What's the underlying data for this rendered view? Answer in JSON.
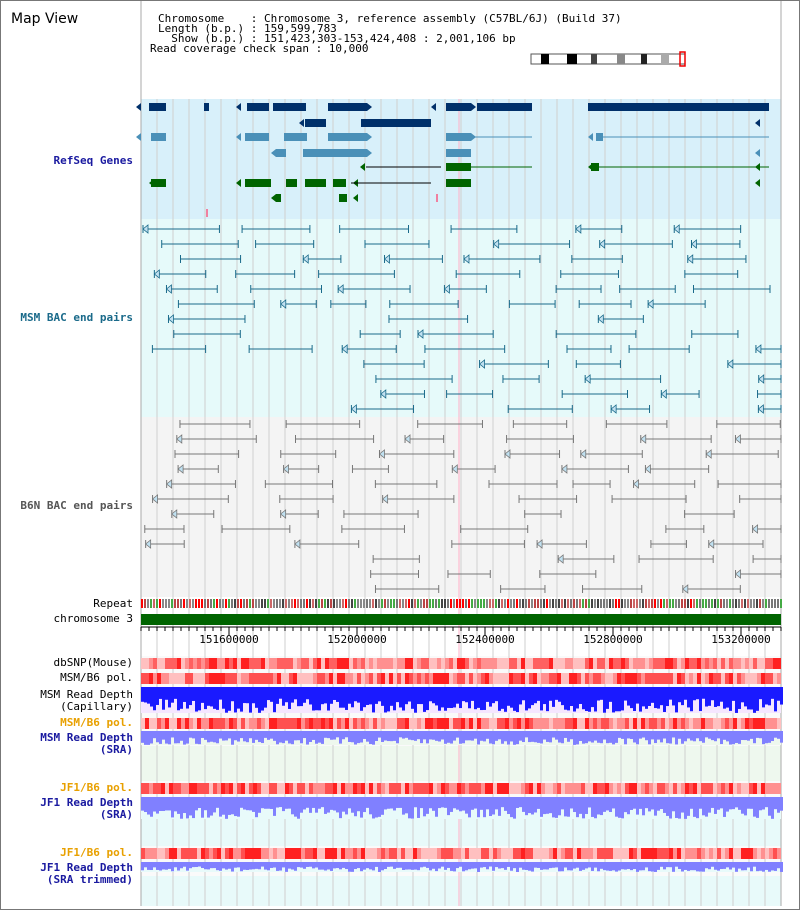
{
  "title": "Map View",
  "header": {
    "chromosome_line": "Chromosome    : Chromosome 3, reference assembly (C57BL/6J) (Build 37)",
    "length_line": "Length (b.p.) : 159,599,783",
    "show_line": "  Show (b.p.) : 151,423,303-153,424,408 : 2,001,106 bp",
    "coverage_line": "Read coverage check span : 10,000"
  },
  "tracks": {
    "refseq": "RefSeq Genes",
    "msm_bac": "MSM BAC end pairs",
    "b6n_bac": "B6N BAC end pairs",
    "repeat": "Repeat",
    "chromosome": "chromosome 3",
    "dbsnp": "dbSNP(Mouse)",
    "msm_b6_pol_1": "MSM/B6 pol.",
    "msm_read_depth_cap_1": "MSM Read Depth",
    "msm_read_depth_cap_2": "(Capillary)",
    "msm_b6_pol_2": "MSM/B6 pol.",
    "msm_read_depth_sra_1": "MSM Read Depth",
    "msm_read_depth_sra_2": "(SRA)",
    "jf1_b6_pol_1": "JF1/B6 pol.",
    "jf1_read_depth_1": "JF1 Read Depth",
    "jf1_read_depth_2": "(SRA)",
    "jf1_b6_pol_2": "JF1/B6 pol.",
    "jf1_read_depth_trim_1": "JF1 Read Depth",
    "jf1_read_depth_trim_2": "(SRA trimmed)"
  },
  "axis": {
    "ticks": [
      "151600000",
      "152000000",
      "152400000",
      "152800000",
      "153200000"
    ]
  },
  "colors": {
    "refseq_bg": "#d8f0fa",
    "msm_bg": "#e6fafa",
    "b6n_bg": "#f4f4f4",
    "navy": "#00306a",
    "steel": "#4a90b8",
    "green": "#006400",
    "msm_pair": "#1a6a8a",
    "b6n_pair": "#777777",
    "depth_blue": "#1a1aff",
    "depth_light": "#8080ff",
    "pol_red": "#ff4040"
  }
}
